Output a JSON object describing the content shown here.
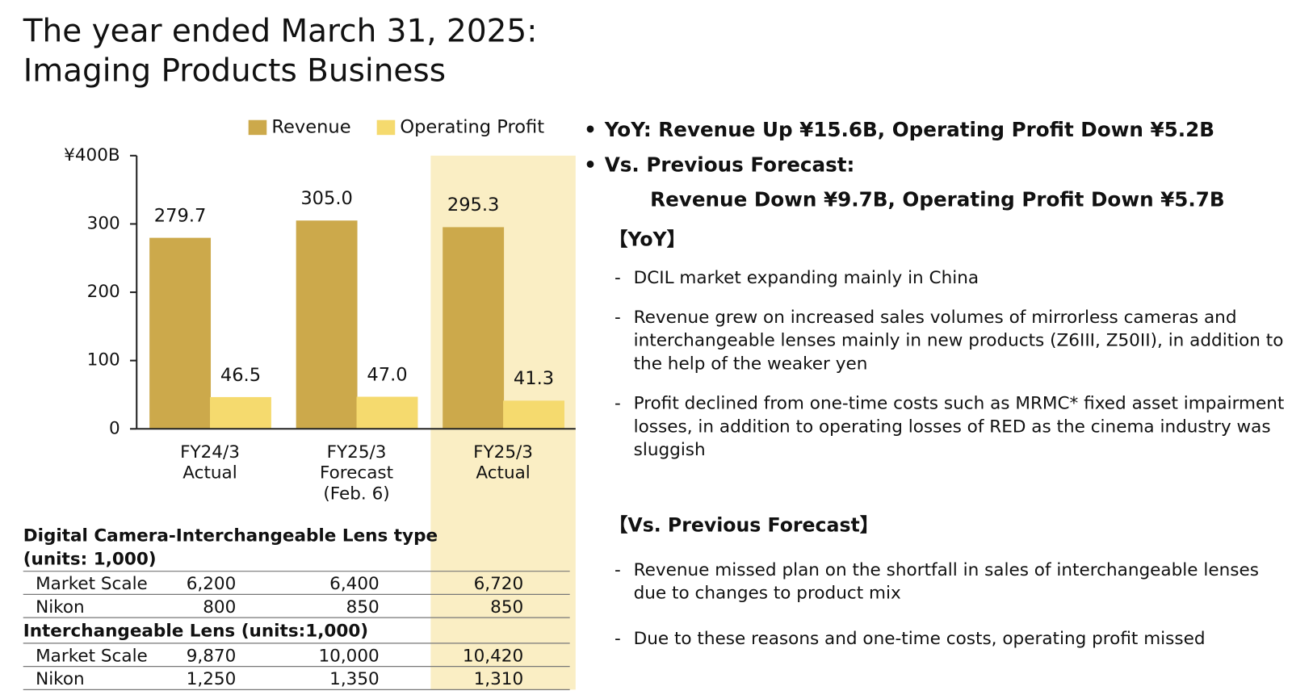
{
  "header": {
    "title_lines": [
      "The year ended March 31, 2025:",
      "Imaging Products Business"
    ]
  },
  "chart_data": {
    "type": "bar",
    "categories": [
      "FY24/3\nActual",
      "FY25/3\nForecast\n(Feb. 6)",
      "FY25/3\nActual"
    ],
    "series": [
      {
        "name": "Revenue",
        "color": "#cca94b",
        "values": [
          279.7,
          305.0,
          295.3
        ],
        "value_labels": [
          "279.7",
          "305.0",
          "295.3"
        ]
      },
      {
        "name": "Operating Profit",
        "color": "#f5da6e",
        "values": [
          46.5,
          47.0,
          41.3
        ],
        "value_labels": [
          "46.5",
          "47.0",
          "41.3"
        ]
      }
    ],
    "ylim": [
      0,
      400
    ],
    "yticks": [
      0,
      100,
      200,
      300,
      {
        "value": 400,
        "label": "¥400B"
      }
    ]
  },
  "tables": [
    {
      "title": "Digital Camera-Interchangeable Lens type",
      "subtitle": "(units: 1,000)",
      "rows": [
        [
          "Market Scale",
          "6,200",
          "6,400",
          "6,720"
        ],
        [
          "Nikon",
          "800",
          "850",
          "850"
        ]
      ]
    },
    {
      "title": "Interchangeable Lens (units:1,000)",
      "rows": [
        [
          "Market Scale",
          "9,870",
          "10,000",
          "10,420"
        ],
        [
          "Nikon",
          "1,250",
          "1,350",
          "1,310"
        ]
      ]
    }
  ],
  "summary": {
    "points": [
      "YoY: Revenue Up ¥15.6B, Operating Profit Down ¥5.2B",
      "Vs. Previous Forecast:"
    ],
    "detail": "Revenue Down ¥9.7B, Operating Profit Down ¥5.7B"
  },
  "sections": [
    {
      "heading": "【YoY】",
      "items": [
        "DCIL market expanding mainly in China",
        "Revenue grew on increased sales volumes of mirrorless cameras and interchangeable lenses mainly in new products (Z6III, Z50II), in addition to the help of the weaker yen",
        "Profit declined from one-time costs such as MRMC* fixed asset impairment losses, in addition to operating losses of RED as the cinema industry was sluggish"
      ]
    },
    {
      "heading": "【Vs. Previous Forecast】",
      "items": [
        "Revenue missed plan on the shortfall in sales of interchangeable lenses due to changes to product mix",
        "Due to these reasons and one-time costs, operating profit missed"
      ]
    }
  ]
}
